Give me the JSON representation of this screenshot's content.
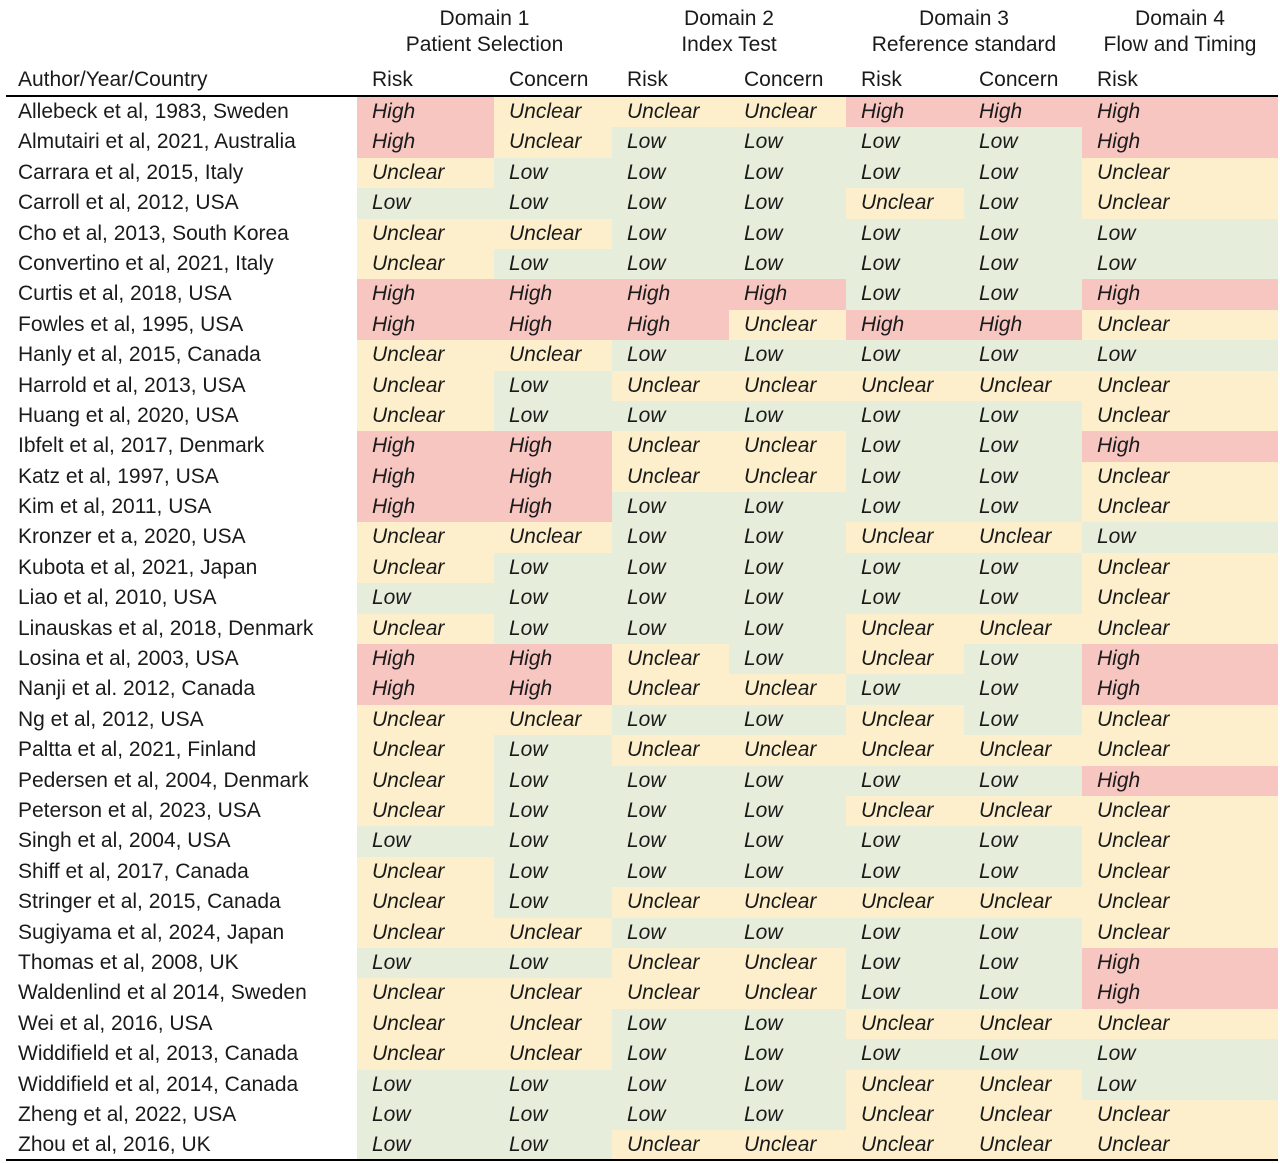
{
  "header": {
    "domains": [
      {
        "title": "Domain 1",
        "subtitle": "Patient Selection"
      },
      {
        "title": "Domain 2",
        "subtitle": "Index Test"
      },
      {
        "title": "Domain 3",
        "subtitle": "Reference standard"
      },
      {
        "title": "Domain 4",
        "subtitle": "Flow and Timing"
      }
    ],
    "author_label": "Author/Year/Country",
    "sub_columns": [
      "Risk",
      "Concern",
      "Risk",
      "Concern",
      "Risk",
      "Concern",
      "Risk"
    ]
  },
  "colors": {
    "High": "#f7c6c1",
    "Unclear": "#fdefcb",
    "Low": "#e6eedb"
  },
  "rows": [
    {
      "author": "Allebeck et al, 1983, Sweden",
      "values": [
        "High",
        "Unclear",
        "Unclear",
        "Unclear",
        "High",
        "High",
        "High"
      ]
    },
    {
      "author": "Almutairi et al, 2021, Australia",
      "values": [
        "High",
        "Unclear",
        "Low",
        "Low",
        "Low",
        "Low",
        "High"
      ]
    },
    {
      "author": "Carrara et al, 2015, Italy",
      "values": [
        "Unclear",
        "Low",
        "Low",
        "Low",
        "Low",
        "Low",
        "Unclear"
      ]
    },
    {
      "author": "Carroll et al, 2012, USA",
      "values": [
        "Low",
        "Low",
        "Low",
        "Low",
        "Unclear",
        "Low",
        "Unclear"
      ]
    },
    {
      "author": "Cho et al, 2013, South Korea",
      "values": [
        "Unclear",
        "Unclear",
        "Low",
        "Low",
        "Low",
        "Low",
        "Low"
      ]
    },
    {
      "author": "Convertino et al, 2021, Italy",
      "values": [
        "Unclear",
        "Low",
        "Low",
        "Low",
        "Low",
        "Low",
        "Low"
      ]
    },
    {
      "author": "Curtis et al, 2018, USA",
      "values": [
        "High",
        "High",
        "High",
        "High",
        "Low",
        "Low",
        "High"
      ]
    },
    {
      "author": "Fowles et al, 1995, USA",
      "values": [
        "High",
        "High",
        "High",
        "Unclear",
        "High",
        "High",
        "Unclear"
      ]
    },
    {
      "author": "Hanly et al, 2015, Canada",
      "values": [
        "Unclear",
        "Unclear",
        "Low",
        "Low",
        "Low",
        "Low",
        "Low"
      ]
    },
    {
      "author": "Harrold et al, 2013, USA",
      "values": [
        "Unclear",
        "Low",
        "Unclear",
        "Unclear",
        "Unclear",
        "Unclear",
        "Unclear"
      ]
    },
    {
      "author": "Huang et al, 2020, USA",
      "values": [
        "Unclear",
        "Low",
        "Low",
        "Low",
        "Low",
        "Low",
        "Unclear"
      ]
    },
    {
      "author": "Ibfelt et al, 2017, Denmark",
      "values": [
        "High",
        "High",
        "Unclear",
        "Unclear",
        "Low",
        "Low",
        "High"
      ]
    },
    {
      "author": "Katz et al, 1997, USA",
      "values": [
        "High",
        "High",
        "Unclear",
        "Unclear",
        "Low",
        "Low",
        "Unclear"
      ]
    },
    {
      "author": "Kim et al, 2011, USA",
      "values": [
        "High",
        "High",
        "Low",
        "Low",
        "Low",
        "Low",
        "Unclear"
      ]
    },
    {
      "author": "Kronzer et a, 2020, USA",
      "values": [
        "Unclear",
        "Unclear",
        "Low",
        "Low",
        "Unclear",
        "Unclear",
        "Low"
      ]
    },
    {
      "author": "Kubota et al, 2021, Japan",
      "values": [
        "Unclear",
        "Low",
        "Low",
        "Low",
        "Low",
        "Low",
        "Unclear"
      ]
    },
    {
      "author": "Liao et al, 2010, USA",
      "values": [
        "Low",
        "Low",
        "Low",
        "Low",
        "Low",
        "Low",
        "Unclear"
      ]
    },
    {
      "author": "Linauskas et al, 2018, Denmark",
      "values": [
        "Unclear",
        "Low",
        "Low",
        "Low",
        "Unclear",
        "Unclear",
        "Unclear"
      ]
    },
    {
      "author": "Losina et al, 2003, USA",
      "values": [
        "High",
        "High",
        "Unclear",
        "Low",
        "Unclear",
        "Low",
        "High"
      ]
    },
    {
      "author": "Nanji et al. 2012, Canada",
      "values": [
        "High",
        "High",
        "Unclear",
        "Unclear",
        "Low",
        "Low",
        "High"
      ]
    },
    {
      "author": "Ng et al, 2012, USA",
      "values": [
        "Unclear",
        "Unclear",
        "Low",
        "Low",
        "Unclear",
        "Low",
        "Unclear"
      ]
    },
    {
      "author": "Paltta et al, 2021, Finland",
      "values": [
        "Unclear",
        "Low",
        "Unclear",
        "Unclear",
        "Unclear",
        "Unclear",
        "Unclear"
      ]
    },
    {
      "author": "Pedersen et al, 2004, Denmark",
      "values": [
        "Unclear",
        "Low",
        "Low",
        "Low",
        "Low",
        "Low",
        "High"
      ]
    },
    {
      "author": "Peterson et al, 2023, USA",
      "values": [
        "Unclear",
        "Low",
        "Low",
        "Low",
        "Unclear",
        "Unclear",
        "Unclear"
      ]
    },
    {
      "author": "Singh et al, 2004, USA",
      "values": [
        "Low",
        "Low",
        "Low",
        "Low",
        "Low",
        "Low",
        "Unclear"
      ]
    },
    {
      "author": "Shiff et al, 2017, Canada",
      "values": [
        "Unclear",
        "Low",
        "Low",
        "Low",
        "Low",
        "Low",
        "Unclear"
      ]
    },
    {
      "author": "Stringer et al, 2015, Canada",
      "values": [
        "Unclear",
        "Low",
        "Unclear",
        "Unclear",
        "Unclear",
        "Unclear",
        "Unclear"
      ]
    },
    {
      "author": "Sugiyama et al, 2024, Japan",
      "values": [
        "Unclear",
        "Unclear",
        "Low",
        "Low",
        "Low",
        "Low",
        "Unclear"
      ]
    },
    {
      "author": "Thomas et al, 2008, UK",
      "values": [
        "Low",
        "Low",
        "Unclear",
        "Unclear",
        "Low",
        "Low",
        "High"
      ]
    },
    {
      "author": "Waldenlind et al 2014, Sweden",
      "values": [
        "Unclear",
        "Unclear",
        "Unclear",
        "Unclear",
        "Low",
        "Low",
        "High"
      ]
    },
    {
      "author": "Wei et al, 2016, USA",
      "values": [
        "Unclear",
        "Unclear",
        "Low",
        "Low",
        "Unclear",
        "Unclear",
        "Unclear"
      ]
    },
    {
      "author": "Widdifield et al, 2013, Canada",
      "values": [
        "Unclear",
        "Unclear",
        "Low",
        "Low",
        "Low",
        "Low",
        "Low"
      ]
    },
    {
      "author": "Widdifield et al, 2014, Canada",
      "values": [
        "Low",
        "Low",
        "Low",
        "Low",
        "Unclear",
        "Unclear",
        "Low"
      ]
    },
    {
      "author": "Zheng et al, 2022, USA",
      "values": [
        "Low",
        "Low",
        "Low",
        "Low",
        "Unclear",
        "Unclear",
        "Unclear"
      ]
    },
    {
      "author": "Zhou et al, 2016, UK",
      "values": [
        "Low",
        "Low",
        "Unclear",
        "Unclear",
        "Unclear",
        "Unclear",
        "Unclear"
      ]
    }
  ]
}
